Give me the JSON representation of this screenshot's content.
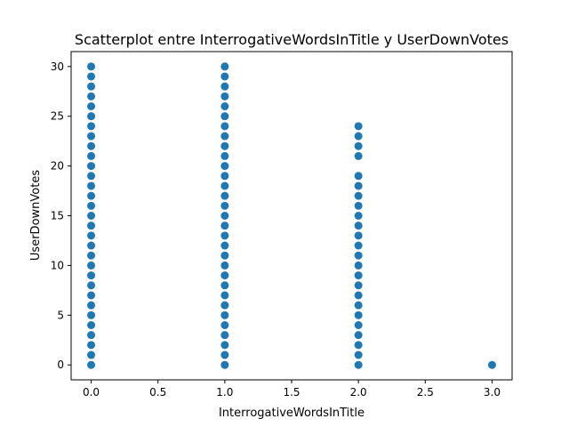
{
  "chart_data": {
    "type": "scatter",
    "title": "Scatterplot entre InterrogativeWordsInTitle y UserDownVotes",
    "xlabel": "InterrogativeWordsInTitle",
    "ylabel": "UserDownVotes",
    "xlim": [
      -0.15,
      3.15
    ],
    "ylim": [
      -1.5,
      31.5
    ],
    "xticks": [
      "0.0",
      "0.5",
      "1.0",
      "1.5",
      "2.0",
      "2.5",
      "3.0"
    ],
    "yticks": [
      "0",
      "5",
      "10",
      "15",
      "20",
      "25",
      "30"
    ],
    "grid": false,
    "point_color": "#1f77b4",
    "series": [
      {
        "x": 0,
        "y": [
          0,
          1,
          2,
          3,
          4,
          5,
          6,
          7,
          8,
          9,
          10,
          11,
          12,
          13,
          14,
          15,
          16,
          17,
          18,
          19,
          20,
          21,
          22,
          23,
          24,
          25,
          26,
          27,
          28,
          29,
          30
        ]
      },
      {
        "x": 1,
        "y": [
          0,
          1,
          2,
          3,
          4,
          5,
          6,
          7,
          8,
          9,
          10,
          11,
          12,
          13,
          14,
          15,
          16,
          17,
          18,
          19,
          20,
          21,
          22,
          23,
          24,
          25,
          26,
          27,
          28,
          29,
          30
        ]
      },
      {
        "x": 2,
        "y": [
          0,
          1,
          2,
          3,
          4,
          5,
          6,
          7,
          8,
          9,
          10,
          11,
          12,
          13,
          14,
          15,
          16,
          17,
          18,
          19,
          21,
          22,
          23,
          24
        ]
      },
      {
        "x": 3,
        "y": [
          0
        ]
      }
    ]
  }
}
